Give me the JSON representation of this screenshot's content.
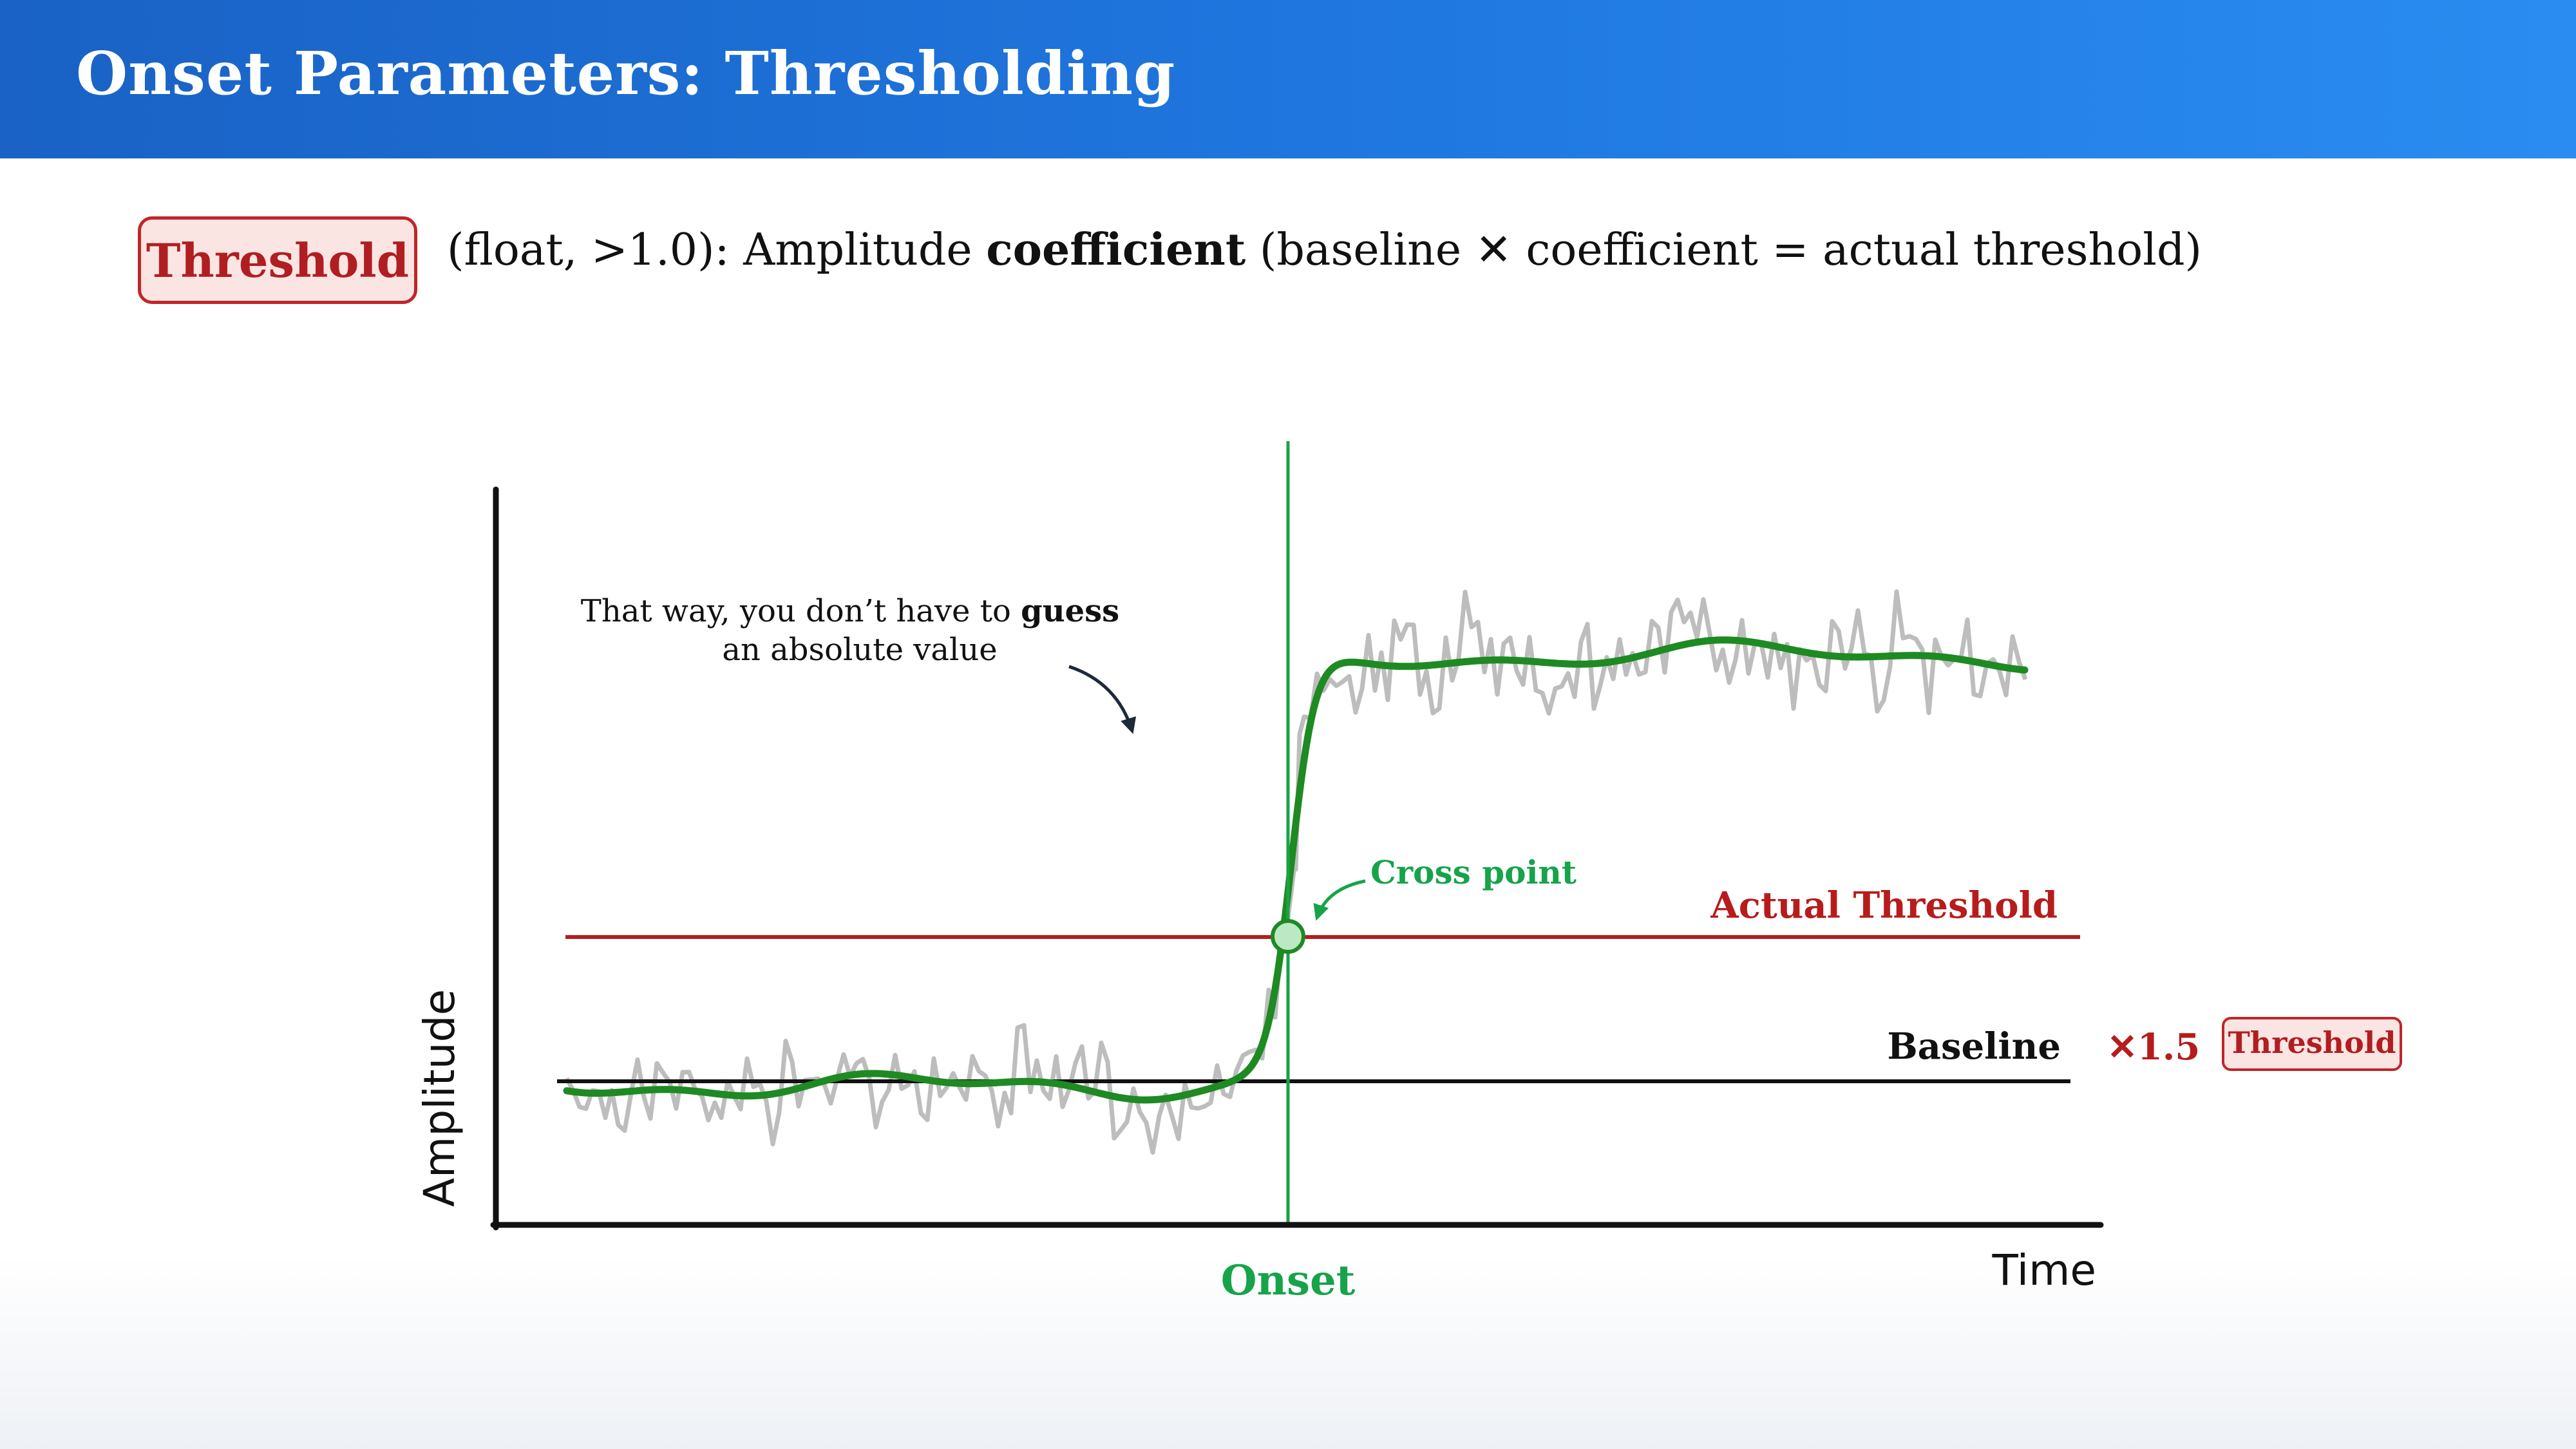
{
  "slide": {
    "title": "Onset Parameters: Thresholding"
  },
  "parameter": {
    "badge_label": "Threshold",
    "desc_prefix": "(float, >1.0): Amplitude ",
    "desc_bold": "coefficient",
    "desc_suffix": " (baseline ✕ coefficient = actual threshold)"
  },
  "diagram": {
    "y_axis_label": "Amplitude",
    "x_axis_label": "Time",
    "onset_label": "Onset",
    "cross_point_label": "Cross point",
    "actual_threshold_label": "Actual Threshold",
    "baseline_label": "Baseline",
    "multiplier_label": "✕1.5",
    "threshold_tag_label": "Threshold",
    "note_line1_prefix": "That way, you don’t have to ",
    "note_line1_bold": "guess",
    "note_line2": "an absolute value",
    "colors": {
      "raw_signal": "#bdbdbd",
      "smoothed_signal": "#1e8a22",
      "threshold_line": "#b71c1c",
      "baseline_line": "#111111",
      "onset_line": "#1aa346",
      "cross_point_fill": "#bde8c4"
    }
  }
}
